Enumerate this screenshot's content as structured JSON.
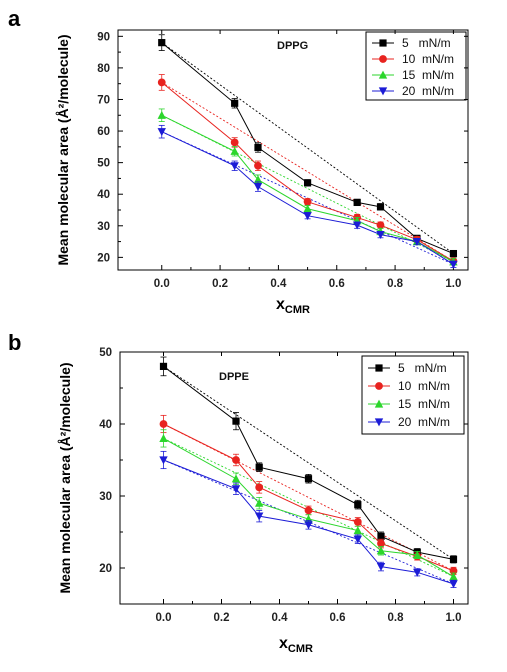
{
  "chart_data": [
    {
      "panel": "a",
      "type": "line",
      "annotation": "DPPG",
      "ylabel": "Mean molecular area (Å²/molecule)",
      "xlabel_main": "x",
      "xlabel_sub": "CMR",
      "xlim": [
        -0.15,
        1.05
      ],
      "ylim": [
        16,
        92
      ],
      "xticks": [
        "0.0",
        "0.2",
        "0.4",
        "0.6",
        "0.8",
        "1.0"
      ],
      "yticks": [
        "20",
        "30",
        "40",
        "50",
        "60",
        "70",
        "80",
        "90"
      ],
      "legend_position": "top-right",
      "x": [
        0,
        0.25,
        0.33,
        0.5,
        0.67,
        0.75,
        0.875,
        1.0
      ],
      "series": [
        {
          "name": "5   mN/m",
          "color": "#000000",
          "marker": "square",
          "values": [
            88,
            68.8,
            54.8,
            43.6,
            37.4,
            36,
            26,
            21.2
          ],
          "errors": [
            2.5,
            1.5,
            1.5,
            1.0,
            1.0,
            1.0,
            1.0,
            1.0
          ]
        },
        {
          "name": "10  mN/m",
          "color": "#e8231f",
          "marker": "circle",
          "values": [
            75.4,
            56.4,
            49,
            37.6,
            32.6,
            30.2,
            25.6,
            18.8
          ],
          "errors": [
            2.5,
            1.5,
            1.5,
            1.0,
            1.0,
            1.0,
            1.0,
            1.0
          ]
        },
        {
          "name": "15  mN/m",
          "color": "#2cd62c",
          "marker": "triangle-up",
          "values": [
            65,
            53.6,
            44.6,
            35.4,
            31.6,
            28.2,
            25,
            18.6
          ],
          "errors": [
            2.0,
            1.5,
            1.5,
            1.0,
            1.0,
            1.0,
            1.0,
            1.0
          ]
        },
        {
          "name": "20  mN/m",
          "color": "#1c1cd6",
          "marker": "triangle-down",
          "values": [
            59.8,
            49,
            42.4,
            33.2,
            30.2,
            27.2,
            25,
            17.8
          ],
          "errors": [
            2.0,
            1.5,
            1.5,
            1.0,
            1.0,
            1.0,
            1.0,
            1.0
          ]
        }
      ]
    },
    {
      "panel": "b",
      "type": "line",
      "annotation": "DPPE",
      "ylabel": "Mean molecular area (Å²/molecule)",
      "xlabel_main": "x",
      "xlabel_sub": "CMR",
      "xlim": [
        -0.15,
        1.05
      ],
      "ylim": [
        15,
        50
      ],
      "xticks": [
        "0.0",
        "0.2",
        "0.4",
        "0.6",
        "0.8",
        "1.0"
      ],
      "yticks": [
        "20",
        "30",
        "40",
        "50"
      ],
      "legend_position": "top-right",
      "x": [
        0,
        0.25,
        0.33,
        0.5,
        0.67,
        0.75,
        0.875,
        1.0
      ],
      "series": [
        {
          "name": "5   mN/m",
          "color": "#000000",
          "marker": "square",
          "values": [
            48,
            40.4,
            34,
            32.4,
            28.8,
            24.4,
            22.2,
            21.2
          ],
          "errors": [
            1.3,
            1.2,
            0.6,
            0.6,
            0.6,
            0.6,
            0.5,
            0.5
          ]
        },
        {
          "name": "10  mN/m",
          "color": "#e8231f",
          "marker": "circle",
          "values": [
            40,
            35,
            31.2,
            28,
            26.4,
            23.4,
            21.6,
            19.6
          ],
          "errors": [
            1.2,
            0.8,
            0.8,
            0.6,
            0.6,
            0.6,
            0.5,
            0.5
          ]
        },
        {
          "name": "15  mN/m",
          "color": "#2cd62c",
          "marker": "triangle-up",
          "values": [
            38,
            32.4,
            29,
            26.8,
            25.2,
            22.4,
            21.8,
            18.8
          ],
          "errors": [
            1.2,
            0.8,
            0.8,
            0.6,
            0.6,
            0.6,
            0.5,
            0.5
          ]
        },
        {
          "name": "20  mN/m",
          "color": "#1c1cd6",
          "marker": "triangle-down",
          "values": [
            35,
            31,
            27.2,
            26,
            24,
            20.2,
            19.4,
            17.8
          ],
          "errors": [
            1.2,
            0.8,
            0.8,
            0.6,
            0.6,
            0.6,
            0.5,
            0.5
          ]
        }
      ]
    }
  ]
}
